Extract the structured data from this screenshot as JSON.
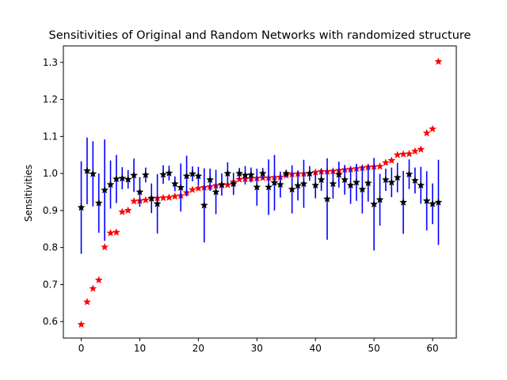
{
  "chart_data": {
    "type": "scatter",
    "title": "Sensitivities of Original and Random Networks with randomized structure",
    "xlabel": "",
    "ylabel": "Sensitivities",
    "xlim": [
      -3.05,
      64.05
    ],
    "ylim": [
      0.5555,
      1.3445
    ],
    "xticks": [
      0,
      10,
      20,
      30,
      40,
      50,
      60
    ],
    "yticks": [
      0.6,
      0.7,
      0.8,
      0.9,
      1.0,
      1.1,
      1.2,
      1.3
    ],
    "ytick_labels": [
      "0.6",
      "0.7",
      "0.8",
      "0.9",
      "1.0",
      "1.1",
      "1.2",
      "1.3"
    ],
    "grid": false,
    "series": [
      {
        "marker": "star",
        "color": "#ff0000",
        "x": [
          0,
          1,
          2,
          3,
          4,
          5,
          6,
          7,
          8,
          9,
          10,
          11,
          12,
          13,
          14,
          15,
          16,
          17,
          18,
          19,
          20,
          21,
          22,
          23,
          24,
          25,
          26,
          27,
          28,
          29,
          30,
          31,
          32,
          33,
          34,
          35,
          36,
          37,
          38,
          39,
          40,
          41,
          42,
          43,
          44,
          45,
          46,
          47,
          48,
          49,
          50,
          51,
          52,
          53,
          54,
          55,
          56,
          57,
          58,
          59,
          60,
          61
        ],
        "y": [
          0.592,
          0.653,
          0.689,
          0.712,
          0.801,
          0.839,
          0.841,
          0.896,
          0.9,
          0.925,
          0.926,
          0.928,
          0.932,
          0.933,
          0.934,
          0.935,
          0.938,
          0.94,
          0.948,
          0.956,
          0.96,
          0.962,
          0.964,
          0.967,
          0.968,
          0.969,
          0.977,
          0.984,
          0.985,
          0.986,
          0.987,
          0.988,
          0.988,
          0.989,
          0.99,
          0.995,
          0.998,
          0.999,
          0.999,
          1.0,
          1.003,
          1.005,
          1.005,
          1.006,
          1.008,
          1.01,
          1.011,
          1.013,
          1.015,
          1.017,
          1.018,
          1.019,
          1.029,
          1.035,
          1.05,
          1.052,
          1.053,
          1.06,
          1.065,
          1.109,
          1.12,
          1.302
        ]
      },
      {
        "marker": "star",
        "color": "#000000",
        "error_color": "#0000ff",
        "x": [
          0,
          1,
          2,
          3,
          4,
          5,
          6,
          7,
          8,
          9,
          10,
          11,
          12,
          13,
          14,
          15,
          16,
          17,
          18,
          19,
          20,
          21,
          22,
          23,
          24,
          25,
          26,
          27,
          28,
          29,
          30,
          31,
          32,
          33,
          34,
          35,
          36,
          37,
          38,
          39,
          40,
          41,
          42,
          43,
          44,
          45,
          46,
          47,
          48,
          49,
          50,
          51,
          52,
          53,
          54,
          55,
          56,
          57,
          58,
          59,
          60,
          61
        ],
        "y": [
          0.908,
          1.007,
          0.999,
          0.92,
          0.955,
          0.97,
          0.985,
          0.987,
          0.984,
          0.995,
          0.95,
          0.996,
          0.933,
          0.918,
          0.997,
          1.001,
          0.972,
          0.962,
          0.993,
          0.999,
          0.993,
          0.914,
          0.983,
          0.95,
          0.97,
          1.0,
          0.972,
          1.0,
          0.995,
          0.996,
          0.963,
          1.0,
          0.963,
          0.975,
          0.97,
          1.0,
          0.957,
          0.967,
          0.972,
          1.0,
          0.968,
          0.983,
          0.931,
          0.972,
          0.997,
          0.983,
          0.968,
          0.976,
          0.957,
          0.974,
          0.917,
          0.929,
          0.983,
          0.976,
          0.989,
          0.922,
          0.998,
          0.981,
          0.968,
          0.926,
          0.918,
          0.922
        ],
        "err": [
          0.125,
          0.09,
          0.088,
          0.08,
          0.137,
          0.065,
          0.065,
          0.03,
          0.025,
          0.045,
          0.04,
          0.02,
          0.04,
          0.08,
          0.025,
          0.02,
          0.02,
          0.065,
          0.055,
          0.02,
          0.025,
          0.1,
          0.03,
          0.06,
          0.03,
          0.03,
          0.03,
          0.015,
          0.025,
          0.02,
          0.05,
          0.015,
          0.075,
          0.075,
          0.035,
          0.01,
          0.065,
          0.04,
          0.065,
          0.02,
          0.035,
          0.03,
          0.11,
          0.04,
          0.035,
          0.04,
          0.05,
          0.05,
          0.065,
          0.05,
          0.125,
          0.07,
          0.03,
          0.04,
          0.04,
          0.085,
          0.04,
          0.035,
          0.05,
          0.08,
          0.055,
          0.115
        ]
      }
    ]
  }
}
